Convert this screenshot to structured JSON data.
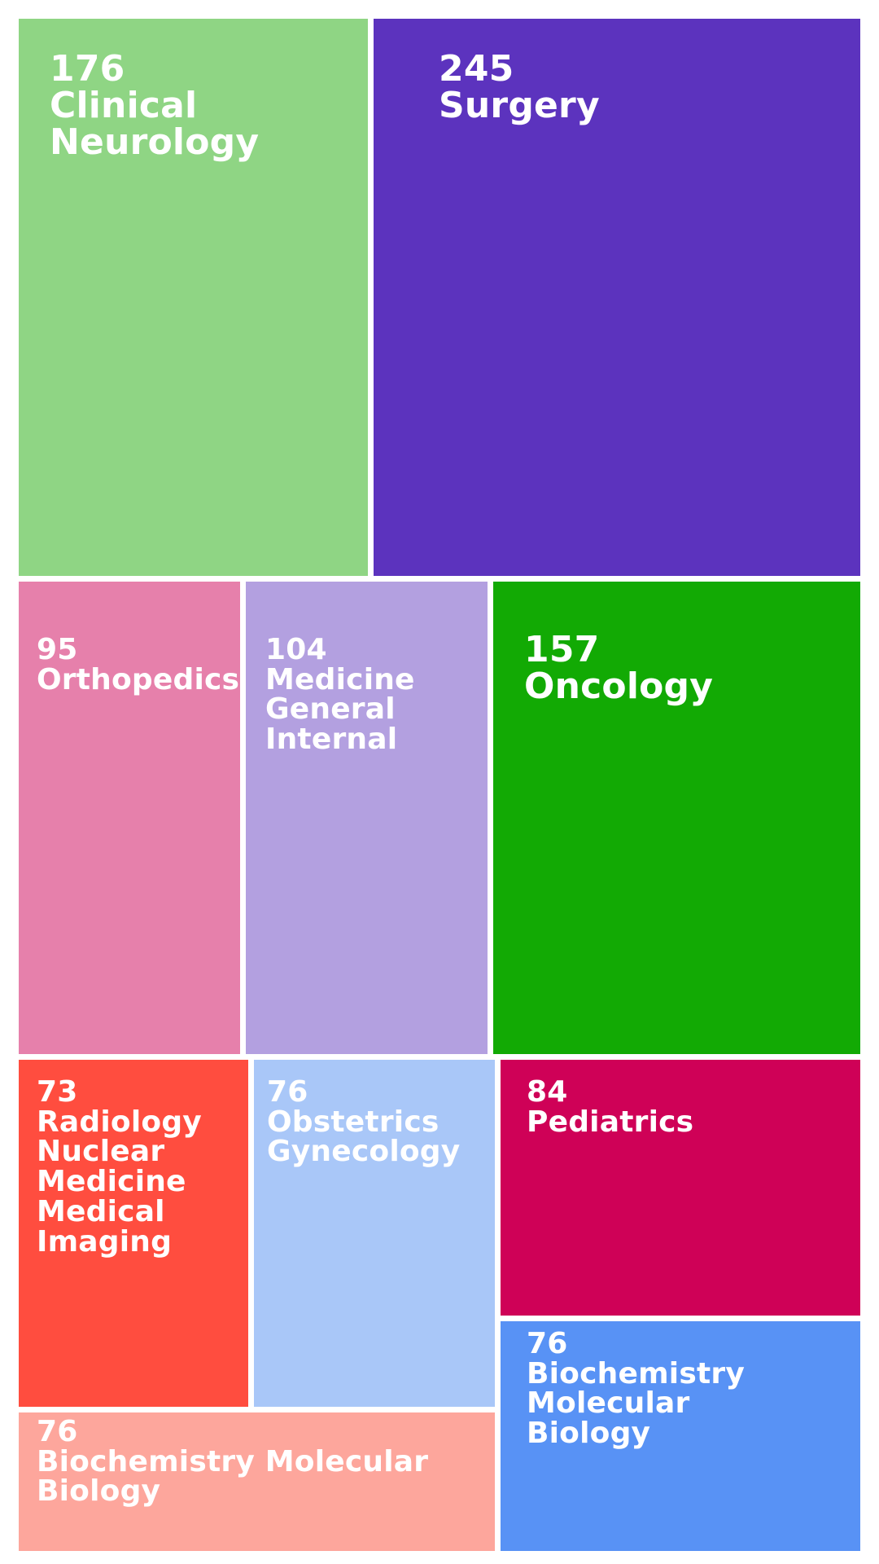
{
  "chart_data": {
    "type": "treemap",
    "nodes": [
      {
        "label": "Clinical\nNeurology",
        "value": 176,
        "color": "#8fd584"
      },
      {
        "label": "Surgery",
        "value": 245,
        "color": "#5c33be"
      },
      {
        "label": "Orthopedics",
        "value": 95,
        "color": "#e680ab"
      },
      {
        "label": "Medicine\nGeneral\nInternal",
        "value": 104,
        "color": "#b3a0e0"
      },
      {
        "label": "Oncology",
        "value": 157,
        "color": "#12aa04"
      },
      {
        "label": "Radiology\nNuclear\nMedicine\nMedical\nImaging",
        "value": 73,
        "color": "#ff4d3f"
      },
      {
        "label": "Obstetrics\nGynecology",
        "value": 76,
        "color": "#a9c7f8"
      },
      {
        "label": "Pediatrics",
        "value": 84,
        "color": "#cf0157"
      },
      {
        "label": "Biochemistry\nMolecular\nBiology",
        "value": 76,
        "color": "#5892f5"
      },
      {
        "label": "Biochemistry Molecular\nBiology",
        "value": 76,
        "color": "#fda69c"
      }
    ]
  }
}
